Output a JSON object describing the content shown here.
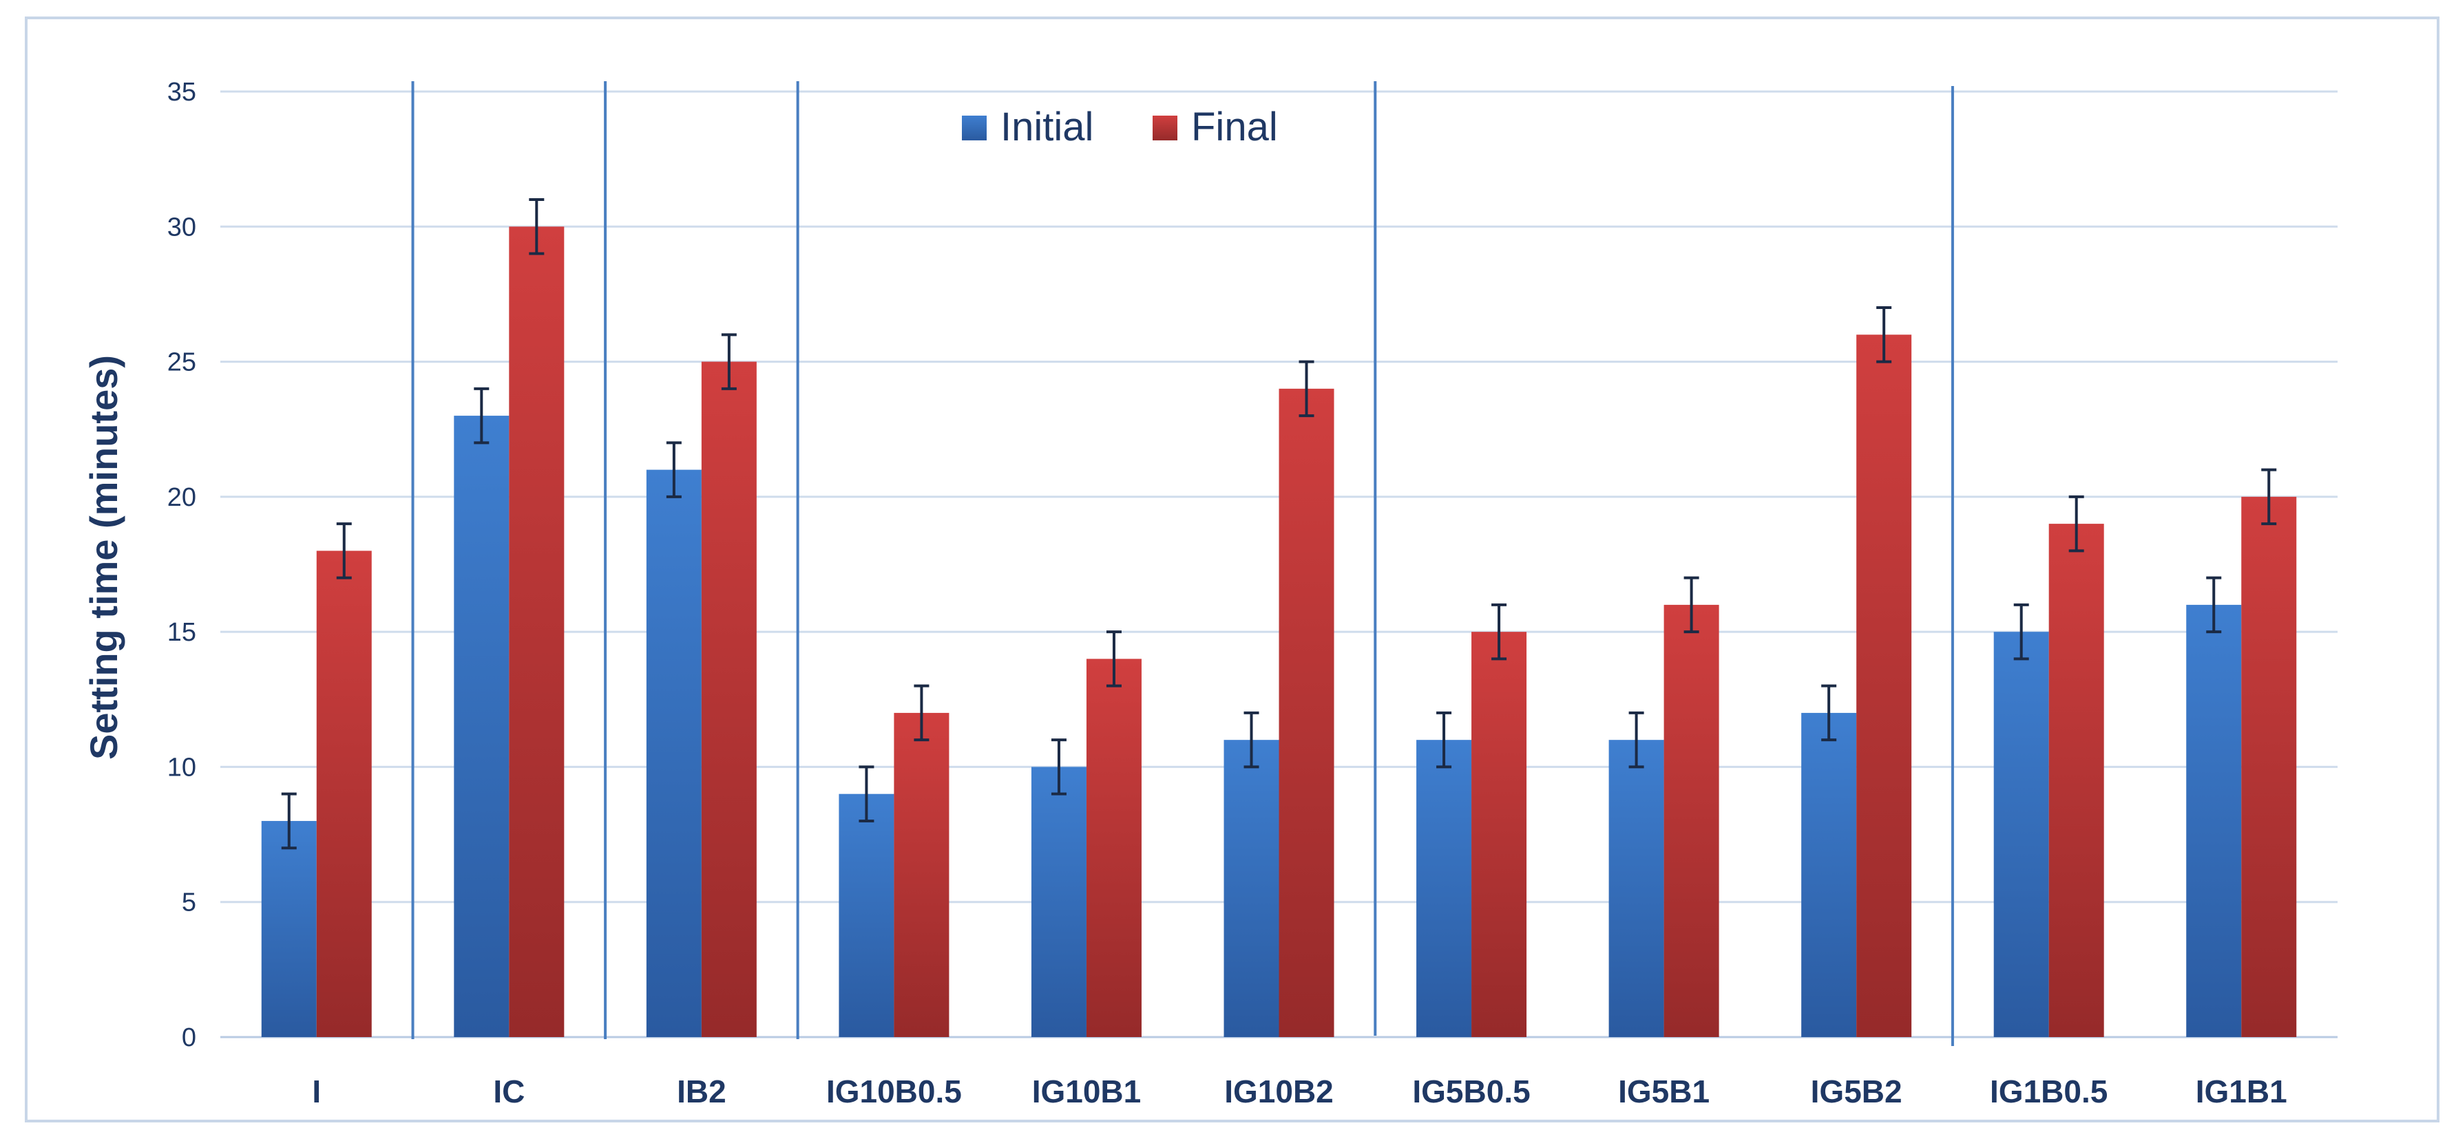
{
  "chart_data": {
    "type": "bar",
    "title": "",
    "xlabel": "",
    "ylabel": "Setting time (minutes)",
    "ylim": [
      0,
      35
    ],
    "yticks": [
      0,
      5,
      10,
      15,
      20,
      25,
      30,
      35
    ],
    "grid": true,
    "legend_position": "top-center",
    "categories": [
      "I",
      "IC",
      "IB2",
      "IG10B0.5",
      "IG10B1",
      "IG10B2",
      "IG5B0.5",
      "IG5B1",
      "IG5B2",
      "IG1B0.5",
      "IG1B1"
    ],
    "series": [
      {
        "name": "Initial",
        "color": "#3a74c4",
        "values": [
          8,
          23,
          21,
          9,
          10,
          11,
          11,
          11,
          12,
          15,
          16
        ],
        "error": [
          1,
          1,
          1,
          1,
          1,
          1,
          1,
          1,
          1,
          1,
          1
        ]
      },
      {
        "name": "Final",
        "color": "#c43a3a",
        "values": [
          18,
          30,
          25,
          12,
          14,
          24,
          15,
          16,
          26,
          19,
          20
        ],
        "error": [
          1,
          1,
          1,
          1,
          1,
          1,
          1,
          1,
          1,
          1,
          1
        ]
      }
    ],
    "group_separators_after_category": [
      0,
      1,
      2,
      5,
      8
    ]
  },
  "colors": {
    "text": "#1f3864",
    "grid": "#cfdcec",
    "separator": "#4a7fc1",
    "frame": "#c8d6e8",
    "errorbar": "#1b2a45"
  }
}
